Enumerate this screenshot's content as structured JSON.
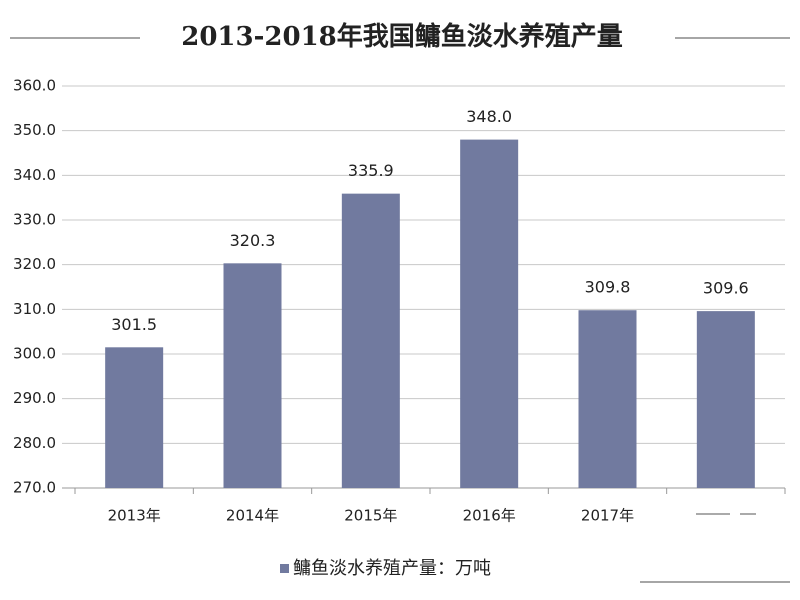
{
  "chart_data": {
    "type": "bar",
    "title": "2013-2018年我国鳙鱼淡水养殖产量",
    "categories": [
      "2013年",
      "2014年",
      "2015年",
      "2016年",
      "2017年",
      null
    ],
    "series": [
      {
        "name": "鳙鱼淡水养殖产量：万吨",
        "color": "#717a9f",
        "values": [
          301.5,
          320.3,
          335.9,
          348.0,
          309.8,
          309.6
        ],
        "value_labels": [
          "301.5",
          "320.3",
          "335.9",
          "348.0",
          "309.8",
          "309.6"
        ]
      }
    ],
    "ylim": [
      270,
      360
    ],
    "yticks": [
      {
        "value": 270,
        "label": "270.0"
      },
      {
        "value": 280,
        "label": "280.0"
      },
      {
        "value": 290,
        "label": "290.0"
      },
      {
        "value": 300,
        "label": "300.0"
      },
      {
        "value": 310,
        "label": "310.0"
      },
      {
        "value": 320,
        "label": "320.0"
      },
      {
        "value": 330,
        "label": "330.0"
      },
      {
        "value": 340,
        "label": "340.0"
      },
      {
        "value": 350,
        "label": "350.0"
      },
      {
        "value": 360,
        "label": "360.0"
      }
    ],
    "grid": true,
    "legend": "bottom"
  }
}
